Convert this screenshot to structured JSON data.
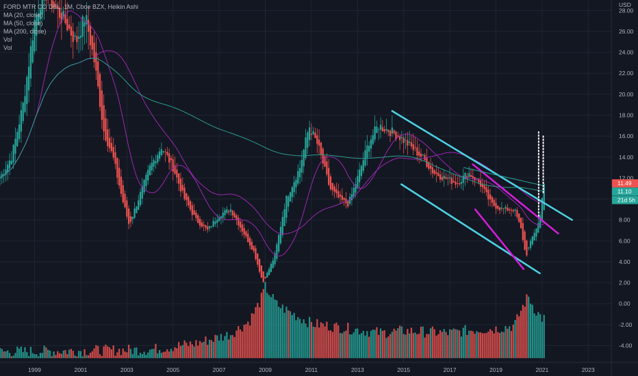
{
  "legend": {
    "title": "FORD MTR CO DEL, 1M, Cboe BZX, Heikin Ashi",
    "lines": [
      "MA (20, close)",
      "MA (50, close)",
      "MA (200, close)",
      "Vol",
      "Vol"
    ]
  },
  "chart_data": {
    "type": "candlestick",
    "currency": "USD",
    "x_ticks": [
      "1999",
      "2001",
      "2003",
      "2005",
      "2007",
      "2009",
      "2011",
      "2013",
      "2015",
      "2017",
      "2019",
      "2021",
      "2023"
    ],
    "x_range": [
      1997.5,
      2024.0
    ],
    "y_ticks": [
      28,
      26,
      24,
      22,
      20,
      18,
      16,
      14,
      12,
      10,
      8,
      6,
      4,
      2,
      0,
      -2,
      -4
    ],
    "y_tick_labels": [
      "28.00",
      "26.00",
      "24.00",
      "22.00",
      "20.00",
      "18.00",
      "16.00",
      "14.00",
      "12.00",
      "10.00",
      "8.00",
      "6.00",
      "4.00",
      "2.00",
      "0.00",
      "-2.00",
      "-4.00"
    ],
    "y_range": [
      -5.6,
      29.0
    ],
    "price_tags": [
      {
        "label": "11.49",
        "value": 11.49,
        "color": "#ef5350"
      },
      {
        "label": "11.10",
        "value": 11.1,
        "color": "#26a69a"
      },
      {
        "label": "21d 5h",
        "value": 9.9,
        "color": "#26a69a"
      }
    ],
    "price_anchors": [
      [
        1997.5,
        12.0
      ],
      [
        1998.0,
        14.0
      ],
      [
        1998.5,
        19.0
      ],
      [
        1999.0,
        27.0
      ],
      [
        1999.4,
        30.0
      ],
      [
        1999.8,
        28.5
      ],
      [
        2000.3,
        27.0
      ],
      [
        2000.8,
        25.0
      ],
      [
        2001.2,
        27.5
      ],
      [
        2001.6,
        23.0
      ],
      [
        2002.0,
        16.5
      ],
      [
        2002.4,
        14.0
      ],
      [
        2002.8,
        10.0
      ],
      [
        2003.1,
        7.5
      ],
      [
        2003.5,
        10.0
      ],
      [
        2004.0,
        13.0
      ],
      [
        2004.5,
        15.0
      ],
      [
        2005.0,
        13.0
      ],
      [
        2005.5,
        10.0
      ],
      [
        2006.0,
        8.0
      ],
      [
        2006.5,
        7.0
      ],
      [
        2007.0,
        8.5
      ],
      [
        2007.5,
        9.0
      ],
      [
        2008.0,
        7.0
      ],
      [
        2008.5,
        5.0
      ],
      [
        2008.9,
        2.0
      ],
      [
        2009.4,
        4.5
      ],
      [
        2009.9,
        10.0
      ],
      [
        2010.5,
        13.0
      ],
      [
        2010.9,
        17.0
      ],
      [
        2011.3,
        15.0
      ],
      [
        2011.8,
        11.0
      ],
      [
        2012.2,
        10.0
      ],
      [
        2012.6,
        9.5
      ],
      [
        2013.0,
        12.0
      ],
      [
        2013.5,
        15.5
      ],
      [
        2013.9,
        17.0
      ],
      [
        2014.4,
        16.5
      ],
      [
        2014.8,
        16.0
      ],
      [
        2015.3,
        15.0
      ],
      [
        2015.8,
        14.0
      ],
      [
        2016.3,
        12.5
      ],
      [
        2016.8,
        12.0
      ],
      [
        2017.3,
        11.5
      ],
      [
        2017.8,
        12.5
      ],
      [
        2018.3,
        11.5
      ],
      [
        2018.8,
        9.5
      ],
      [
        2019.3,
        9.0
      ],
      [
        2019.8,
        9.0
      ],
      [
        2020.1,
        7.0
      ],
      [
        2020.3,
        4.5
      ],
      [
        2020.6,
        6.5
      ],
      [
        2020.9,
        8.0
      ],
      [
        2021.05,
        11.5
      ]
    ],
    "volume_anchors": [
      [
        1997.5,
        -4.7
      ],
      [
        2004.0,
        -4.5
      ],
      [
        2006.0,
        -3.9
      ],
      [
        2007.5,
        -3.0
      ],
      [
        2008.3,
        -1.8
      ],
      [
        2008.8,
        0.2
      ],
      [
        2009.0,
        1.5
      ],
      [
        2009.5,
        -0.2
      ],
      [
        2010.3,
        -1.2
      ],
      [
        2011.0,
        -2.0
      ],
      [
        2012.0,
        -2.3
      ],
      [
        2013.0,
        -2.6
      ],
      [
        2014.0,
        -2.9
      ],
      [
        2015.0,
        -2.7
      ],
      [
        2016.0,
        -2.8
      ],
      [
        2017.0,
        -2.9
      ],
      [
        2018.0,
        -2.6
      ],
      [
        2019.0,
        -2.5
      ],
      [
        2019.8,
        -2.2
      ],
      [
        2020.2,
        -0.2
      ],
      [
        2020.4,
        0.6
      ],
      [
        2020.7,
        -0.7
      ],
      [
        2021.0,
        -1.5
      ]
    ],
    "drawings": [
      {
        "type": "trend_line",
        "color": "#4dd0e1",
        "from": [
          2014.5,
          18.4
        ],
        "to": [
          2022.3,
          8.0
        ]
      },
      {
        "type": "trend_line",
        "color": "#4dd0e1",
        "from": [
          2014.9,
          11.4
        ],
        "to": [
          2020.9,
          2.9
        ]
      },
      {
        "type": "trend_line",
        "color": "#d01fd6",
        "from": [
          2018.0,
          13.3
        ],
        "to": [
          2021.7,
          6.7
        ]
      },
      {
        "type": "trend_line",
        "color": "#d01fd6",
        "from": [
          2018.1,
          9.0
        ],
        "to": [
          2020.2,
          3.3
        ]
      },
      {
        "type": "trend_line",
        "color": "#26a69a",
        "from": [
          2017.6,
          13.0
        ],
        "to": [
          2021.0,
          11.3
        ]
      },
      {
        "type": "dotted_vertical",
        "color": "#ffffff",
        "x": 2020.85,
        "y_range": [
          8.2,
          16.4
        ]
      },
      {
        "type": "dotted_vertical",
        "color": "#ffffff",
        "x": 2021.05,
        "y_range": [
          10.5,
          16.0
        ]
      }
    ],
    "colors": {
      "background": "#131722",
      "grid": "#1f2433",
      "up": "#26a69a",
      "down": "#ef5350",
      "ma20": "#9c27b0",
      "ma50": "#9c27b0",
      "ma200": "#2a9d8f",
      "axis_text": "#b2b5be"
    }
  }
}
